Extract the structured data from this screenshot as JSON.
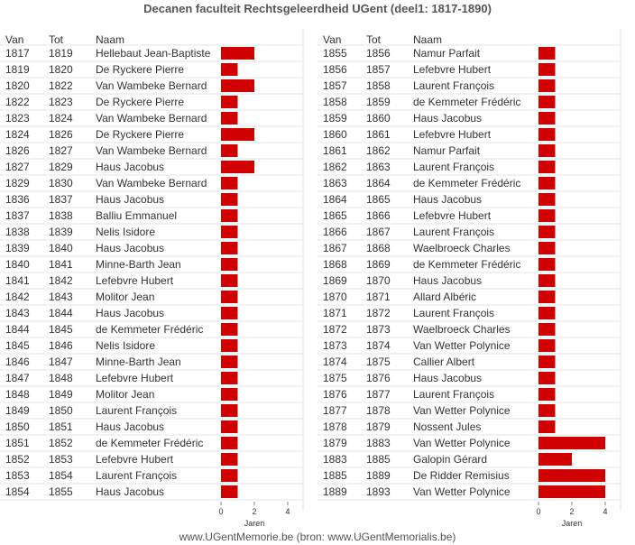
{
  "title": "Decanen faculteit Rechtsgeleerdheid UGent (deel1: 1817-1890)",
  "footer": "www.UGentMemorie.be (bron: www.UGentMemorialis.be)",
  "colors": {
    "bar": "#d10000",
    "text": "#333333",
    "row_line": "#e3e3e3",
    "axis": "#888888"
  },
  "chart_data": {
    "type": "bar",
    "orientation": "horizontal",
    "xlabel": "Jaren",
    "xlim": [
      0,
      4
    ],
    "xticks": [
      "0",
      "2",
      "4"
    ],
    "columns": [
      "Van",
      "Tot",
      "Naam"
    ],
    "panels": [
      {
        "rows": [
          {
            "van": "1817",
            "tot": "1819",
            "naam": "Hellebaut Jean-Baptiste",
            "jaren": 2
          },
          {
            "van": "1819",
            "tot": "1820",
            "naam": "De Ryckere Pierre",
            "jaren": 1
          },
          {
            "van": "1820",
            "tot": "1822",
            "naam": "Van Wambeke Bernard",
            "jaren": 2
          },
          {
            "van": "1822",
            "tot": "1823",
            "naam": "De Ryckere Pierre",
            "jaren": 1
          },
          {
            "van": "1823",
            "tot": "1824",
            "naam": "Van Wambeke Bernard",
            "jaren": 1
          },
          {
            "van": "1824",
            "tot": "1826",
            "naam": "De Ryckere Pierre",
            "jaren": 2
          },
          {
            "van": "1826",
            "tot": "1827",
            "naam": "Van Wambeke Bernard",
            "jaren": 1
          },
          {
            "van": "1827",
            "tot": "1829",
            "naam": "Haus Jacobus",
            "jaren": 2
          },
          {
            "van": "1829",
            "tot": "1830",
            "naam": "Van Wambeke Bernard",
            "jaren": 1
          },
          {
            "van": "1836",
            "tot": "1837",
            "naam": "Haus Jacobus",
            "jaren": 1
          },
          {
            "van": "1837",
            "tot": "1838",
            "naam": "Balliu Emmanuel",
            "jaren": 1
          },
          {
            "van": "1838",
            "tot": "1839",
            "naam": "Nelis Isidore",
            "jaren": 1
          },
          {
            "van": "1839",
            "tot": "1840",
            "naam": "Haus Jacobus",
            "jaren": 1
          },
          {
            "van": "1840",
            "tot": "1841",
            "naam": "Minne-Barth Jean",
            "jaren": 1
          },
          {
            "van": "1841",
            "tot": "1842",
            "naam": "Lefebvre Hubert",
            "jaren": 1
          },
          {
            "van": "1842",
            "tot": "1843",
            "naam": "Molitor Jean",
            "jaren": 1
          },
          {
            "van": "1843",
            "tot": "1844",
            "naam": "Haus Jacobus",
            "jaren": 1
          },
          {
            "van": "1844",
            "tot": "1845",
            "naam": "de Kemmeter Frédéric",
            "jaren": 1
          },
          {
            "van": "1845",
            "tot": "1846",
            "naam": "Nelis Isidore",
            "jaren": 1
          },
          {
            "van": "1846",
            "tot": "1847",
            "naam": "Minne-Barth Jean",
            "jaren": 1
          },
          {
            "van": "1847",
            "tot": "1848",
            "naam": "Lefebvre Hubert",
            "jaren": 1
          },
          {
            "van": "1848",
            "tot": "1849",
            "naam": "Molitor Jean",
            "jaren": 1
          },
          {
            "van": "1849",
            "tot": "1850",
            "naam": "Laurent François",
            "jaren": 1
          },
          {
            "van": "1850",
            "tot": "1851",
            "naam": "Haus Jacobus",
            "jaren": 1
          },
          {
            "van": "1851",
            "tot": "1852",
            "naam": "de Kemmeter Frédéric",
            "jaren": 1
          },
          {
            "van": "1852",
            "tot": "1853",
            "naam": "Lefebvre Hubert",
            "jaren": 1
          },
          {
            "van": "1853",
            "tot": "1854",
            "naam": "Laurent François",
            "jaren": 1
          },
          {
            "van": "1854",
            "tot": "1855",
            "naam": "Haus Jacobus",
            "jaren": 1
          }
        ]
      },
      {
        "rows": [
          {
            "van": "1855",
            "tot": "1856",
            "naam": "Namur Parfait",
            "jaren": 1
          },
          {
            "van": "1856",
            "tot": "1857",
            "naam": "Lefebvre Hubert",
            "jaren": 1
          },
          {
            "van": "1857",
            "tot": "1858",
            "naam": "Laurent François",
            "jaren": 1
          },
          {
            "van": "1858",
            "tot": "1859",
            "naam": "de Kemmeter Frédéric",
            "jaren": 1
          },
          {
            "van": "1859",
            "tot": "1860",
            "naam": "Haus Jacobus",
            "jaren": 1
          },
          {
            "van": "1860",
            "tot": "1861",
            "naam": "Lefebvre Hubert",
            "jaren": 1
          },
          {
            "van": "1861",
            "tot": "1862",
            "naam": "Namur Parfait",
            "jaren": 1
          },
          {
            "van": "1862",
            "tot": "1863",
            "naam": "Laurent François",
            "jaren": 1
          },
          {
            "van": "1863",
            "tot": "1864",
            "naam": "de Kemmeter Frédéric",
            "jaren": 1
          },
          {
            "van": "1864",
            "tot": "1865",
            "naam": "Haus Jacobus",
            "jaren": 1
          },
          {
            "van": "1865",
            "tot": "1866",
            "naam": "Lefebvre Hubert",
            "jaren": 1
          },
          {
            "van": "1866",
            "tot": "1867",
            "naam": "Laurent François",
            "jaren": 1
          },
          {
            "van": "1867",
            "tot": "1868",
            "naam": "Waelbroeck Charles",
            "jaren": 1
          },
          {
            "van": "1868",
            "tot": "1869",
            "naam": "de Kemmeter Frédéric",
            "jaren": 1
          },
          {
            "van": "1869",
            "tot": "1870",
            "naam": "Haus Jacobus",
            "jaren": 1
          },
          {
            "van": "1870",
            "tot": "1871",
            "naam": "Allard Albéric",
            "jaren": 1
          },
          {
            "van": "1871",
            "tot": "1872",
            "naam": "Laurent François",
            "jaren": 1
          },
          {
            "van": "1872",
            "tot": "1873",
            "naam": "Waelbroeck Charles",
            "jaren": 1
          },
          {
            "van": "1873",
            "tot": "1874",
            "naam": "Van Wetter Polynice",
            "jaren": 1
          },
          {
            "van": "1874",
            "tot": "1875",
            "naam": "Callier Albert",
            "jaren": 1
          },
          {
            "van": "1875",
            "tot": "1876",
            "naam": "Haus Jacobus",
            "jaren": 1
          },
          {
            "van": "1876",
            "tot": "1877",
            "naam": "Laurent François",
            "jaren": 1
          },
          {
            "van": "1877",
            "tot": "1878",
            "naam": "Van Wetter Polynice",
            "jaren": 1
          },
          {
            "van": "1878",
            "tot": "1879",
            "naam": "Nossent Jules",
            "jaren": 1
          },
          {
            "van": "1879",
            "tot": "1883",
            "naam": "Van Wetter Polynice",
            "jaren": 4
          },
          {
            "van": "1883",
            "tot": "1885",
            "naam": "Galopin Gérard",
            "jaren": 2
          },
          {
            "van": "1885",
            "tot": "1889",
            "naam": "De Ridder Remisius",
            "jaren": 4
          },
          {
            "van": "1889",
            "tot": "1893",
            "naam": "Van Wetter Polynice",
            "jaren": 4
          }
        ]
      }
    ]
  }
}
